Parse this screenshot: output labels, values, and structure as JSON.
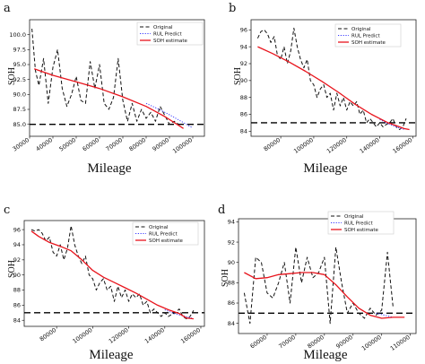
{
  "colors": {
    "original": "#111111",
    "rul_predict": "#3a3aff",
    "soh_estimate": "#e8141c",
    "threshold": "#000000"
  },
  "chart_data": [
    {
      "type": "line",
      "panel_label": "a",
      "xlabel": "Mileage",
      "ylabel": "SOH",
      "xlim": [
        30000,
        105000
      ],
      "ylim": [
        83.0,
        102.5
      ],
      "x_ticks": [
        30000,
        40000,
        50000,
        60000,
        70000,
        80000,
        90000,
        100000
      ],
      "x_tick_labels": [
        "30000",
        "40000",
        "50000",
        "60000",
        "70000",
        "80000",
        "90000",
        "100000"
      ],
      "y_ticks": [
        85.0,
        87.5,
        90.0,
        92.5,
        95.0,
        97.5,
        100.0
      ],
      "y_tick_labels": [
        "85.0",
        "87.5",
        "90.0",
        "92.5",
        "95.0",
        "97.5",
        "100.0"
      ],
      "threshold": 85.0,
      "legend": [
        "Original",
        "RUL Predict",
        "SOH estimate"
      ],
      "series": [
        {
          "name": "Original",
          "style": "dashed",
          "x": [
            31000,
            32500,
            34000,
            36000,
            38000,
            40000,
            42000,
            44000,
            46000,
            48000,
            50000,
            52000,
            54000,
            56000,
            58000,
            60000,
            62000,
            64000,
            66000,
            68000,
            70000,
            72000,
            74000,
            76000,
            78000,
            80000,
            82000,
            84000,
            86000,
            88000,
            90000,
            92000,
            94000
          ],
          "y": [
            101.0,
            94.0,
            91.5,
            96.0,
            88.5,
            94.5,
            97.5,
            91.0,
            88.0,
            90.0,
            93.0,
            89.0,
            88.5,
            95.5,
            91.0,
            95.0,
            88.5,
            87.5,
            89.5,
            96.0,
            89.0,
            85.5,
            88.5,
            85.5,
            87.5,
            86.0,
            87.0,
            85.5,
            88.0,
            86.5,
            85.0,
            85.5,
            85.0
          ]
        },
        {
          "name": "RUL Predict",
          "style": "dotted",
          "x": [
            80000,
            85000,
            90000,
            95000,
            100000
          ],
          "y": [
            88.5,
            87.6,
            86.6,
            85.5,
            84.4
          ]
        },
        {
          "name": "SOH estimate",
          "style": "solid",
          "x": [
            32000,
            40000,
            50000,
            60000,
            70000,
            80000,
            88000,
            96000
          ],
          "y": [
            94.3,
            93.2,
            92.1,
            91.0,
            89.6,
            88.0,
            86.3,
            84.3
          ]
        }
      ]
    },
    {
      "type": "line",
      "panel_label": "b",
      "xlabel": "Mileage",
      "ylabel": "SOH",
      "xlim": [
        62000,
        162000
      ],
      "ylim": [
        83.4,
        97.2
      ],
      "x_ticks": [
        80000,
        100000,
        120000,
        140000,
        160000
      ],
      "x_tick_labels": [
        "80000",
        "100000",
        "120000",
        "140000",
        "160000"
      ],
      "y_ticks": [
        84,
        86,
        88,
        90,
        92,
        94,
        96
      ],
      "y_tick_labels": [
        "84",
        "86",
        "88",
        "90",
        "92",
        "94",
        "96"
      ],
      "threshold": 85.0,
      "legend": [
        "Original",
        "RUL Predict",
        "SOH estimate"
      ],
      "series": [
        {
          "name": "Original",
          "style": "dashed",
          "x": [
            66000,
            68000,
            70000,
            72000,
            74000,
            76000,
            78000,
            80000,
            82000,
            84000,
            86000,
            88000,
            90000,
            92000,
            94000,
            96000,
            98000,
            100000,
            102000,
            104000,
            106000,
            108000,
            110000,
            112000,
            114000,
            116000,
            118000,
            120000,
            122000,
            124000,
            126000,
            128000,
            130000,
            132000,
            134000,
            136000,
            138000,
            140000,
            142000,
            144000,
            146000,
            148000,
            150000,
            152000,
            154000,
            156000
          ],
          "y": [
            95.0,
            95.8,
            96.0,
            95.5,
            94.5,
            95.2,
            93.0,
            92.5,
            94.0,
            92.0,
            93.5,
            96.2,
            94.0,
            92.5,
            91.5,
            92.5,
            90.0,
            89.5,
            88.0,
            89.0,
            89.5,
            88.0,
            88.5,
            86.5,
            88.5,
            87.0,
            88.0,
            86.5,
            87.5,
            87.0,
            87.5,
            86.0,
            86.5,
            85.0,
            85.5,
            85.0,
            84.5,
            85.0,
            84.5,
            84.8,
            85.0,
            85.5,
            84.5,
            84.2,
            84.5,
            85.5
          ]
        },
        {
          "name": "RUL Predict",
          "style": "dotted",
          "x": [
            140000,
            145000,
            150000,
            155000
          ],
          "y": [
            85.4,
            84.9,
            84.5,
            84.2
          ]
        },
        {
          "name": "SOH estimate",
          "style": "solid",
          "x": [
            66000,
            75000,
            85000,
            95000,
            105000,
            115000,
            125000,
            135000,
            145000,
            155000,
            158000
          ],
          "y": [
            94.0,
            93.2,
            92.2,
            91.1,
            89.9,
            88.6,
            87.2,
            86.0,
            85.0,
            84.3,
            84.2
          ]
        }
      ]
    },
    {
      "type": "line",
      "panel_label": "c",
      "xlabel": "Mileage",
      "ylabel": "SOH",
      "xlim": [
        62000,
        162000
      ],
      "ylim": [
        83.2,
        97.2
      ],
      "x_ticks": [
        80000,
        100000,
        120000,
        140000,
        160000
      ],
      "x_tick_labels": [
        "80000",
        "100000",
        "120000",
        "140000",
        "160000"
      ],
      "y_ticks": [
        84,
        86,
        88,
        90,
        92,
        94,
        96
      ],
      "y_tick_labels": [
        "84",
        "86",
        "88",
        "90",
        "92",
        "94",
        "96"
      ],
      "threshold": 85.0,
      "legend": [
        "Original",
        "RUL Predict",
        "SOH estimate"
      ],
      "series": [
        {
          "name": "Original",
          "style": "dashed",
          "x": [
            66000,
            68000,
            70000,
            72000,
            74000,
            76000,
            78000,
            80000,
            82000,
            84000,
            86000,
            88000,
            90000,
            92000,
            94000,
            96000,
            98000,
            100000,
            102000,
            104000,
            106000,
            108000,
            110000,
            112000,
            114000,
            116000,
            118000,
            120000,
            122000,
            124000,
            126000,
            128000,
            130000,
            132000,
            134000,
            136000,
            138000,
            140000,
            142000,
            144000,
            146000,
            148000,
            150000,
            152000,
            154000,
            156000
          ],
          "y": [
            96.0,
            95.8,
            96.0,
            95.5,
            94.5,
            95.0,
            93.0,
            92.5,
            94.0,
            92.0,
            93.5,
            96.5,
            94.0,
            92.5,
            91.5,
            92.5,
            90.0,
            89.5,
            88.0,
            89.0,
            89.5,
            88.0,
            88.5,
            86.5,
            88.5,
            87.0,
            88.0,
            86.5,
            87.5,
            87.0,
            87.5,
            86.0,
            86.5,
            85.0,
            85.5,
            85.0,
            84.5,
            85.0,
            84.5,
            84.8,
            85.0,
            85.5,
            84.5,
            84.2,
            84.5,
            85.3
          ]
        },
        {
          "name": "RUL Predict",
          "style": "dotted",
          "x": [
            140000,
            145000,
            150000,
            155000
          ],
          "y": [
            85.4,
            84.9,
            84.6,
            84.3
          ]
        },
        {
          "name": "SOH estimate",
          "style": "solid",
          "x": [
            66000,
            70000,
            76000,
            82000,
            88000,
            94000,
            100000,
            106000,
            112000,
            118000,
            124000,
            130000,
            136000,
            142000,
            148000,
            152000,
            156000
          ],
          "y": [
            95.8,
            95.1,
            94.3,
            93.8,
            93.2,
            92.0,
            90.6,
            89.7,
            89.0,
            88.3,
            87.6,
            86.8,
            86.0,
            85.4,
            84.9,
            84.3,
            84.2
          ]
        }
      ]
    },
    {
      "type": "line",
      "panel_label": "d",
      "xlabel": "Mileage",
      "ylabel": "SOH",
      "xlim": [
        50000,
        112000
      ],
      "ylim": [
        83.0,
        94.3
      ],
      "x_ticks": [
        60000,
        70000,
        80000,
        90000,
        100000,
        110000
      ],
      "x_tick_labels": [
        "60000",
        "70000",
        "80000",
        "90000",
        "100000",
        "110000"
      ],
      "y_ticks": [
        84,
        86,
        88,
        90,
        92,
        94
      ],
      "y_tick_labels": [
        "84",
        "86",
        "88",
        "90",
        "92",
        "94"
      ],
      "threshold": 85.0,
      "legend": [
        "Original",
        "RUL Predict",
        "SOH estimate"
      ],
      "series": [
        {
          "name": "Original",
          "style": "dashed",
          "x": [
            52000,
            54000,
            56000,
            58000,
            60000,
            62000,
            64000,
            66000,
            68000,
            70000,
            72000,
            74000,
            76000,
            78000,
            80000,
            82000,
            84000,
            86000,
            88000,
            90000,
            92000,
            94000,
            96000,
            98000,
            100000,
            102000,
            104000
          ],
          "y": [
            87.0,
            84.0,
            90.5,
            90.0,
            87.0,
            86.5,
            88.0,
            90.0,
            86.0,
            91.5,
            88.0,
            90.5,
            88.5,
            89.0,
            90.5,
            84.0,
            91.5,
            88.0,
            85.0,
            86.0,
            85.0,
            84.5,
            85.5,
            84.8,
            85.3,
            91.0,
            85.5
          ]
        },
        {
          "name": "RUL Predict",
          "style": "dotted",
          "x": [
            98000,
            101000,
            104000
          ],
          "y": [
            85.0,
            84.8,
            84.6
          ]
        },
        {
          "name": "SOH estimate",
          "style": "solid",
          "x": [
            52000,
            56000,
            60000,
            64000,
            68000,
            72000,
            76000,
            80000,
            84000,
            88000,
            92000,
            96000,
            100000,
            104000,
            108000
          ],
          "y": [
            89.0,
            88.4,
            88.5,
            88.8,
            88.9,
            89.0,
            89.0,
            88.8,
            87.8,
            86.6,
            85.5,
            84.8,
            84.5,
            84.6,
            84.6
          ]
        }
      ]
    }
  ]
}
